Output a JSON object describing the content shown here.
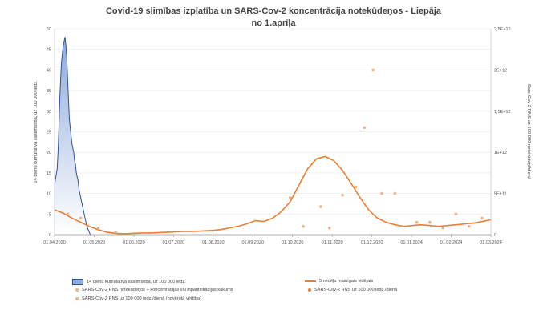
{
  "chart_data": {
    "type": "line",
    "title": "Covid-19 slimības izplatība un SARS-Cov-2 koncentrācija notekūdeņos - Liepāja",
    "subtitle": "no 1.aprīļa",
    "ylabel_left": "14 dienu kumulatīvā saslimstība, uz 100 000 iedz.",
    "ylabel_right": "Sars-Cov-2 RNS uz 100 000 notekūdeņi/dienā",
    "x_ticks": [
      "01.04.2020",
      "01.05.2020",
      "01.06.2020",
      "01.07.2020",
      "01.08.2020",
      "01.09.2020",
      "01.10.2020",
      "01.11.2020",
      "01.12.2020",
      "01.01.2024",
      "01.02.2024",
      "01.03.2024"
    ],
    "y_left_ticks": [
      "0",
      "5",
      "10",
      "15",
      "20",
      "25",
      "30",
      "35",
      "40",
      "45",
      "50"
    ],
    "y_left_lim": [
      0,
      50
    ],
    "y_right_ticks": [
      "0",
      "5E+11",
      "1E+12",
      "1,5E+12",
      "2E+12",
      "2,5E+12"
    ],
    "y_right_lim": [
      0,
      2500000000000
    ],
    "series": [
      {
        "name": "14 dienu kumulatīvā saslimstība, uz 100 000 iedz.",
        "kind": "area",
        "color": "#4472c4",
        "axis": "left",
        "x": [
          0,
          0.3,
          0.6,
          0.8,
          1.0,
          1.2,
          1.4,
          1.6,
          1.8,
          2.0,
          2.2,
          2.4,
          2.6,
          2.8,
          3.0,
          3.2,
          3.4,
          3.6,
          3.8,
          4.0,
          4.2,
          4.4,
          4.6,
          4.8,
          5.0,
          5.2,
          5.4,
          5.6,
          5.8,
          6.0,
          6.2,
          6.4,
          6.6,
          6.8,
          7.0,
          7.2,
          7.4,
          7.6,
          7.8,
          8.0,
          8.2
        ],
        "values": [
          12,
          14,
          16,
          20,
          26,
          33,
          38,
          42,
          44,
          46,
          47,
          48,
          46,
          43,
          38,
          33,
          28,
          26,
          24,
          22,
          21,
          20,
          18,
          17,
          15,
          14,
          13,
          11,
          10,
          9,
          8,
          7,
          6,
          5,
          4,
          3,
          2,
          1.5,
          1,
          0.5,
          0
        ]
      },
      {
        "name": "5 nedēļu mainīgais vidējais",
        "kind": "line",
        "color": "#ed7d31",
        "axis": "right",
        "x": [
          0,
          2,
          4,
          6,
          8,
          10,
          12,
          14,
          16,
          18,
          20,
          22,
          24,
          26,
          28,
          30,
          32,
          34,
          36,
          38,
          40,
          42,
          44,
          46,
          48,
          50,
          52,
          54,
          56,
          58,
          60,
          62,
          64,
          66,
          68,
          70,
          72,
          74,
          76,
          78,
          80,
          82,
          84,
          86,
          88,
          90,
          92,
          94,
          96,
          98,
          100
        ],
        "values": [
          300000000000,
          260000000000,
          200000000000,
          150000000000,
          100000000000,
          60000000000,
          30000000000,
          15000000000,
          10000000000,
          15000000000,
          20000000000,
          20000000000,
          25000000000,
          30000000000,
          35000000000,
          40000000000,
          40000000000,
          45000000000,
          50000000000,
          60000000000,
          80000000000,
          100000000000,
          130000000000,
          170000000000,
          160000000000,
          200000000000,
          280000000000,
          400000000000,
          600000000000,
          800000000000,
          920000000000,
          950000000000,
          900000000000,
          780000000000,
          620000000000,
          450000000000,
          300000000000,
          200000000000,
          150000000000,
          120000000000,
          100000000000,
          110000000000,
          120000000000,
          110000000000,
          100000000000,
          110000000000,
          120000000000,
          130000000000,
          140000000000,
          160000000000,
          180000000000
        ]
      },
      {
        "name": "SARS-Cov-2 RNS uz 100 000 iedz./dienā",
        "kind": "scatter",
        "color": "#f4b183",
        "axis": "right",
        "x": [
          3,
          6,
          10,
          14,
          54,
          57,
          61,
          63,
          66,
          69,
          71,
          73,
          75,
          78,
          83,
          86,
          89,
          92,
          95,
          98
        ],
        "values": [
          250000000000,
          200000000000,
          80000000000,
          30000000000,
          450000000000,
          100000000000,
          340000000000,
          80000000000,
          480000000000,
          580000000000,
          1300000000000,
          2000000000000,
          500000000000,
          500000000000,
          150000000000,
          150000000000,
          80000000000,
          250000000000,
          100000000000,
          200000000000
        ]
      }
    ],
    "legend": {
      "placement": "bottom",
      "items": [
        "14 dienu kumulatīvā saslimstība, uz 100 000 iedz.",
        "5 nedēļu mainīgais vidējais",
        "SARS-Cov-2 RNS notekūdeņos + koncentrācijas vai inparitifikācijas sakums",
        "SARS-Cov-2 RNS uz 100 000 iedz./dienā",
        "SARS-Cov-2 RNS uz 100 000 iedz./dienā (novērotā vērtība)"
      ]
    }
  }
}
